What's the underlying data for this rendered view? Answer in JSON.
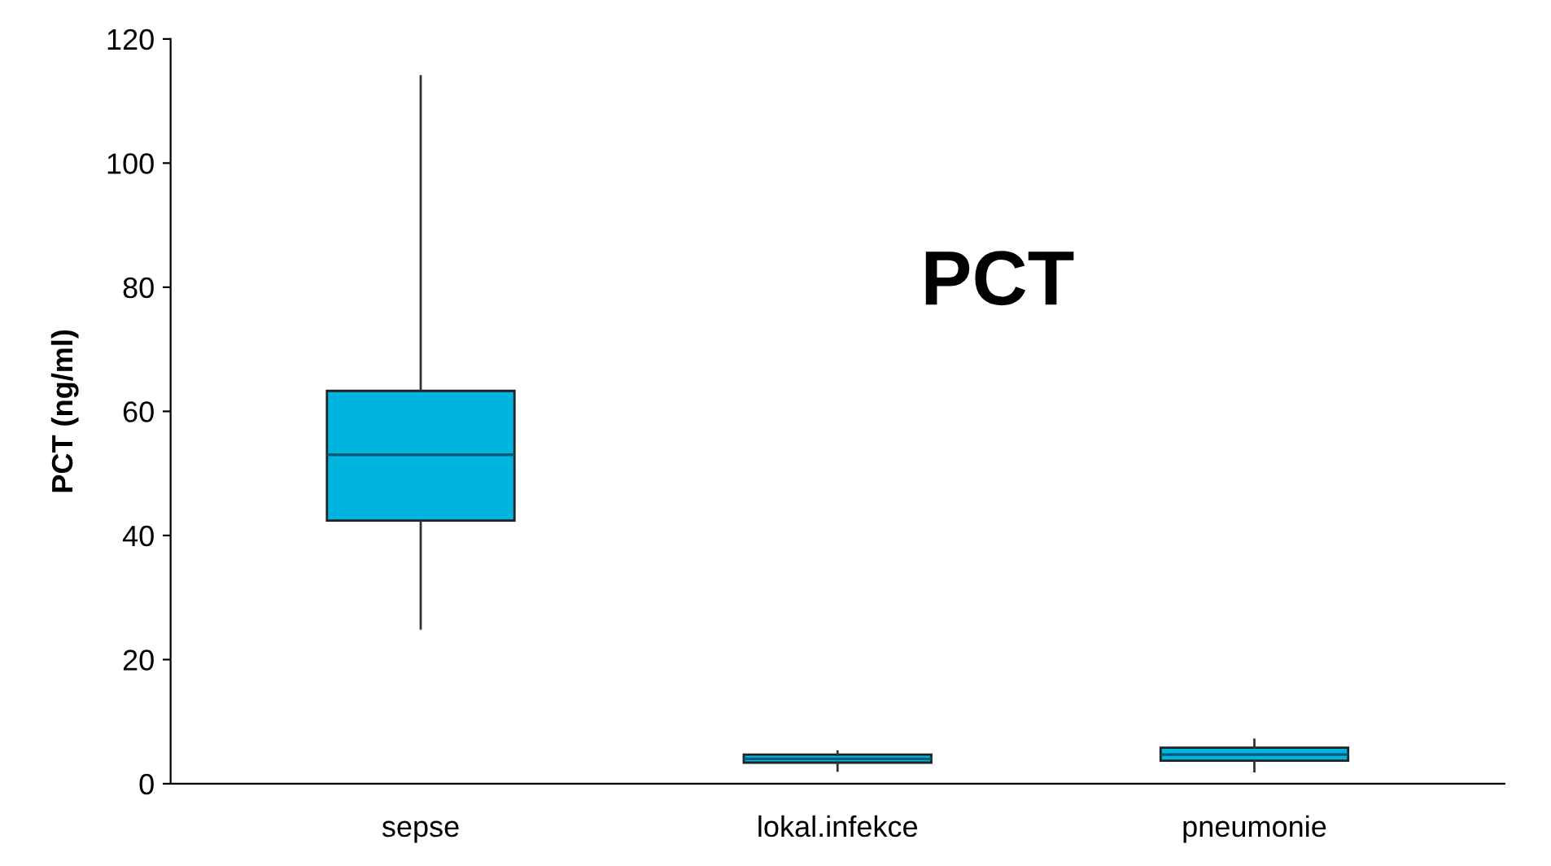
{
  "chart_data": {
    "type": "box",
    "ylabel": "PCT (ng/ml)",
    "annotations": [
      "PCT"
    ],
    "categories": [
      "sepse",
      "lokal.infekce",
      "pneumonie"
    ],
    "boxes": [
      {
        "low": 25,
        "q1": 42.4,
        "median": 53,
        "q3": 63.3,
        "high": 114
      },
      {
        "low": 2.1,
        "q1": 3.4,
        "median": 4,
        "q3": 4.7,
        "high": 5.2
      },
      {
        "low": 2,
        "q1": 3.7,
        "median": 4.7,
        "q3": 5.8,
        "high": 7.1
      }
    ],
    "color": "#00b4e0",
    "ylim": [
      0,
      120
    ],
    "yticks": [
      0,
      20,
      40,
      60,
      80,
      100,
      120
    ],
    "grid": false,
    "legend": false
  }
}
